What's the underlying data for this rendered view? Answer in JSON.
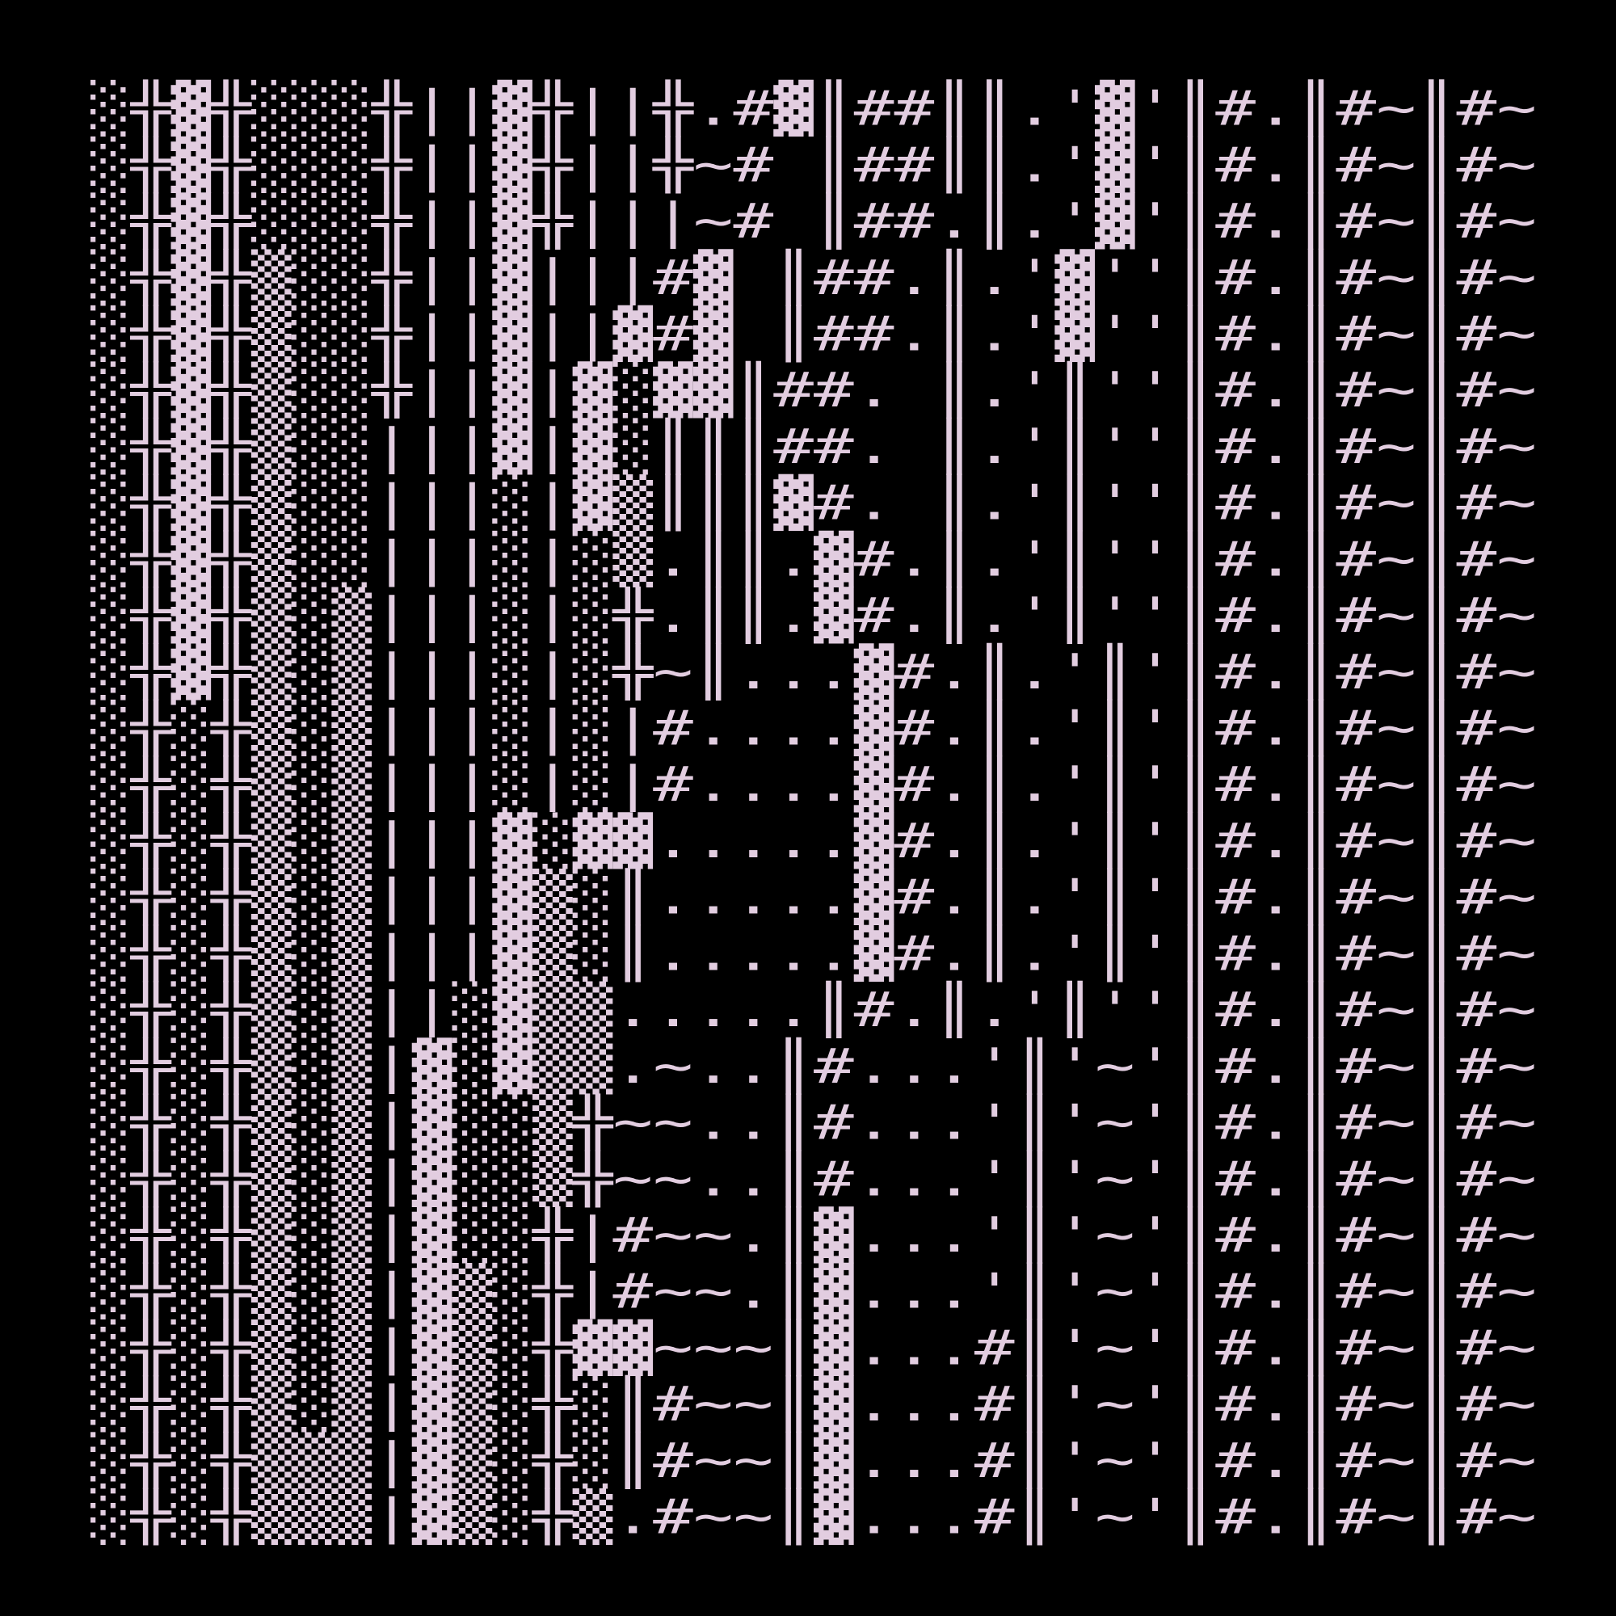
{
  "grid": {
    "rows": [
      "░╬▓╬░░░╬||▓╬||╬.#▓║##║║.'▓'║#.║#~║#~",
      "░╬▓╬░░░╬||▓╬||╬~# ║##║║.'▓'║#.║#~║#~",
      "░╬▓╬░░░╬||▓╬|||~# ║##.║.'▓'║#.║#~║#~",
      "░╬▓╬▒░░╬||▓|||#▓ ║##.║.'▓''║#.║#~║#~",
      "░╬▓╬▒░░╬||▓||▓#▓ ║##.║.'▓''║#.║#~║#~",
      "░╬▓╬▒░░╬||▓|▓░▓▓║##. ║.'║''║#.║#~║#~",
      "░╬▓╬▒░░|||▓|▓░║║║##. ║.'║''║#.║#~║#~",
      "░╬▓╬▒░░|||░|▓▒║║║▓#. ║.'║''║#.║#~║#~",
      "░╬▓╬▒░░|||░|░▒.║║.▓#.║.'║''║#.║#~║#~",
      "░╬▓╬▒░▒|||░|░╬.║║.▓#.║.'║''║#.║#~║#~",
      "░╬▓╬▒░▒|||░|░╬~║...▓#.║.'║'║#.║#~║#~",
      "░╬░╬▒░▒|||░|░|#....▓#.║.'║'║#.║#~║#~",
      "░╬░╬▒░▒|||░|░|#....▓#.║.'║'║#.║#~║#~",
      "░╬░╬▒░▒|||▓░▓▓.....▓#.║.'║'║#.║#~║#~",
      "░╬░╬▒░▒|||▓▒░║.....▓#.║.'║'║#.║#~║#~",
      "░╬░╬▒░▒|||▓▒░║.....▓#.║.'║'║#.║#~║#~",
      "░╬░╬▒░▒||░▓▒▒.....║#.║.'║''║#.║#~║#~",
      "░╬░╬▒░▒|▓░▓▒▒.~..║#...'║'~'║#.║#~║#~",
      "░╬░╬▒░▒|▓░░▒╬~~..║#...'║'~'║#.║#~║#~",
      "░╬░╬▒░▒|▓░░▒╬~~..║#...'║'~'║#.║#~║#~",
      "░╬░╬▒░▒|▓░░╬|#~~.║▓...'║'~'║#.║#~║#~",
      "░╬░╬▒░▒|▓▒░╬|#~~.║▓...'║'~'║#.║#~║#~",
      "░╬░╬▒░▒|▓▒░╬▓▓~~~║▓...#║'~'║#.║#~║#~",
      "░╬░╬▒░▒|▓▒░╬░║#~~║▓...#║'~'║#.║#~║#~",
      "░╬░╬▒▒▒|▓▒░╬░║#~~║▓...#║'~'║#.║#~║#~",
      "░╬░╬▒▒▒|▓▒░╬▒.#~~║▓...#║'~'║#.║#~║#~"
    ]
  }
}
